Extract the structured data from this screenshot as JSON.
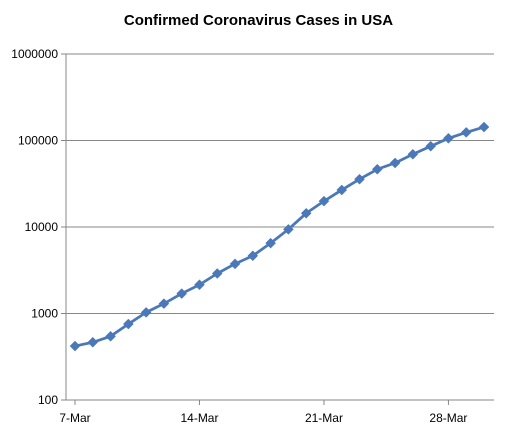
{
  "chart_data": {
    "type": "line",
    "title": "Confirmed Coronavirus Cases in USA",
    "xlabel": "",
    "ylabel": "",
    "y_scale": "log",
    "ylim": [
      100,
      1000000
    ],
    "y_ticks": [
      100,
      1000,
      10000,
      100000,
      1000000
    ],
    "y_tick_labels": [
      "100",
      "1000",
      "10000",
      "100000",
      "1000000"
    ],
    "x_tick_labels": [
      "7-Mar",
      "14-Mar",
      "21-Mar",
      "28-Mar"
    ],
    "xlim": [
      "2020-03-07",
      "2020-03-30"
    ],
    "grid": "horizontal",
    "legend": "none",
    "line_color": "#4a78b8",
    "marker": "diamond",
    "x": [
      "2020-03-07",
      "2020-03-08",
      "2020-03-09",
      "2020-03-10",
      "2020-03-11",
      "2020-03-12",
      "2020-03-13",
      "2020-03-14",
      "2020-03-15",
      "2020-03-16",
      "2020-03-17",
      "2020-03-18",
      "2020-03-19",
      "2020-03-20",
      "2020-03-21",
      "2020-03-22",
      "2020-03-23",
      "2020-03-24",
      "2020-03-25",
      "2020-03-26",
      "2020-03-27",
      "2020-03-28",
      "2020-03-29",
      "2020-03-30"
    ],
    "series": [
      {
        "values": [
          420,
          465,
          545,
          755,
          1030,
          1300,
          1700,
          2150,
          2900,
          3750,
          4650,
          6500,
          9400,
          14400,
          19900,
          26800,
          35700,
          46500,
          55000,
          69300,
          85900,
          106000,
          124000,
          143000
        ]
      }
    ]
  }
}
